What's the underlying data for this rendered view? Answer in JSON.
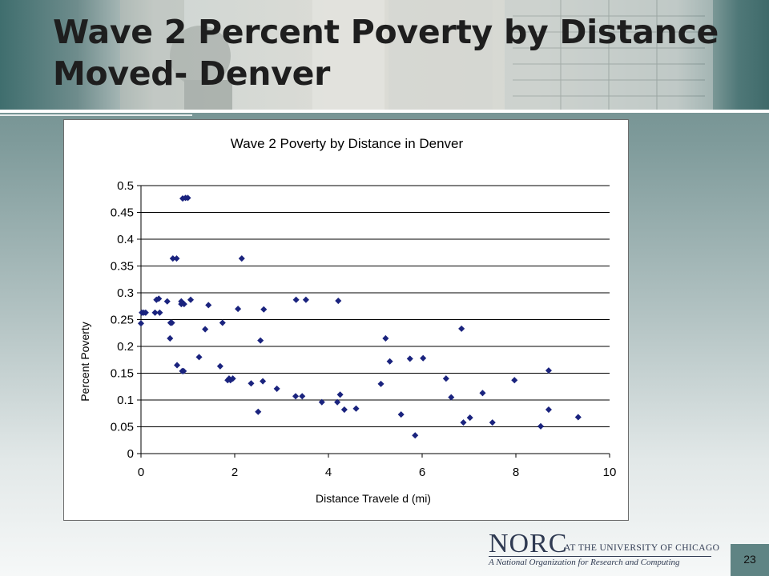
{
  "slide": {
    "title": "Wave 2 Percent Poverty by Distance Moved- Denver",
    "page_number": "23",
    "logo": {
      "name": "NORC",
      "affiliation": "AT THE UNIVERSITY OF CHICAGO",
      "tagline": "A National Organization for Research and Computing"
    }
  },
  "chart_data": {
    "type": "scatter",
    "title": "Wave 2 Poverty by Distance in Denver",
    "xlabel": "Distance Travele d (mi)",
    "ylabel": "Percent Poverty",
    "xlim": [
      0,
      10
    ],
    "ylim": [
      0,
      0.5
    ],
    "xticks": [
      "0",
      "2",
      "4",
      "6",
      "8",
      "10"
    ],
    "yticks": [
      "0",
      "0.05",
      "0.1",
      "0.15",
      "0.2",
      "0.25",
      "0.3",
      "0.35",
      "0.4",
      "0.45",
      "0.5"
    ],
    "grid": "horizontal",
    "marker_color": "#1a237e",
    "points": [
      [
        0.0,
        0.243
      ],
      [
        0.02,
        0.263
      ],
      [
        0.06,
        0.263
      ],
      [
        0.1,
        0.263
      ],
      [
        0.3,
        0.263
      ],
      [
        0.33,
        0.287
      ],
      [
        0.38,
        0.289
      ],
      [
        0.4,
        0.263
      ],
      [
        0.56,
        0.284
      ],
      [
        0.62,
        0.215
      ],
      [
        0.63,
        0.244
      ],
      [
        0.66,
        0.244
      ],
      [
        0.68,
        0.364
      ],
      [
        0.76,
        0.364
      ],
      [
        0.77,
        0.165
      ],
      [
        0.86,
        0.279
      ],
      [
        0.86,
        0.284
      ],
      [
        0.88,
        0.154
      ],
      [
        0.89,
        0.476
      ],
      [
        0.91,
        0.154
      ],
      [
        0.92,
        0.279
      ],
      [
        0.95,
        0.477
      ],
      [
        1.0,
        0.477
      ],
      [
        1.06,
        0.287
      ],
      [
        1.24,
        0.18
      ],
      [
        1.37,
        0.232
      ],
      [
        1.44,
        0.277
      ],
      [
        1.69,
        0.163
      ],
      [
        1.74,
        0.244
      ],
      [
        1.85,
        0.137
      ],
      [
        1.88,
        0.14
      ],
      [
        1.91,
        0.137
      ],
      [
        1.96,
        0.14
      ],
      [
        2.07,
        0.27
      ],
      [
        2.15,
        0.364
      ],
      [
        2.35,
        0.131
      ],
      [
        2.5,
        0.078
      ],
      [
        2.55,
        0.211
      ],
      [
        2.6,
        0.135
      ],
      [
        2.62,
        0.269
      ],
      [
        2.9,
        0.121
      ],
      [
        3.3,
        0.107
      ],
      [
        3.31,
        0.287
      ],
      [
        3.44,
        0.107
      ],
      [
        3.52,
        0.287
      ],
      [
        3.86,
        0.096
      ],
      [
        4.19,
        0.096
      ],
      [
        4.21,
        0.285
      ],
      [
        4.25,
        0.11
      ],
      [
        4.34,
        0.082
      ],
      [
        4.59,
        0.084
      ],
      [
        5.12,
        0.13
      ],
      [
        5.22,
        0.215
      ],
      [
        5.31,
        0.172
      ],
      [
        5.55,
        0.073
      ],
      [
        5.74,
        0.177
      ],
      [
        5.85,
        0.034
      ],
      [
        6.02,
        0.178
      ],
      [
        6.51,
        0.14
      ],
      [
        6.62,
        0.105
      ],
      [
        6.84,
        0.233
      ],
      [
        6.88,
        0.058
      ],
      [
        7.02,
        0.067
      ],
      [
        7.29,
        0.113
      ],
      [
        7.5,
        0.058
      ],
      [
        7.97,
        0.137
      ],
      [
        8.53,
        0.051
      ],
      [
        8.7,
        0.155
      ],
      [
        8.7,
        0.082
      ],
      [
        9.33,
        0.068
      ]
    ]
  }
}
